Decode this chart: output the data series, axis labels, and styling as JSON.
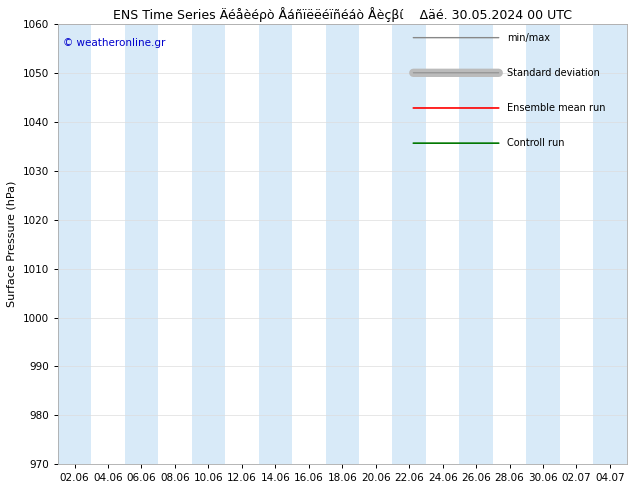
{
  "title": "ENS Time Series Äéåèéρò Åáñïëëéïñéáò Åèçβί    Δäé. 30.05.2024 00 UTC",
  "ylabel": "Surface Pressure (hPa)",
  "ylim": [
    970,
    1060
  ],
  "yticks": [
    970,
    980,
    990,
    1000,
    1010,
    1020,
    1030,
    1040,
    1050,
    1060
  ],
  "xtick_labels": [
    "02.06",
    "04.06",
    "06.06",
    "08.06",
    "10.06",
    "12.06",
    "14.06",
    "16.06",
    "18.06",
    "20.06",
    "22.06",
    "24.06",
    "26.06",
    "28.06",
    "30.06",
    "02.07",
    "04.07"
  ],
  "watermark": "© weatheronline.gr",
  "background_color": "#ffffff",
  "plot_bg_color": "#ffffff",
  "band_color": "#d8eaf8",
  "band_indices": [
    0,
    2,
    4,
    6,
    8,
    10,
    12,
    14,
    16
  ],
  "legend_items": [
    "min/max",
    "Standard deviation",
    "Ensemble mean run",
    "Controll run"
  ],
  "title_fontsize": 9,
  "tick_fontsize": 7.5,
  "ylabel_fontsize": 8
}
